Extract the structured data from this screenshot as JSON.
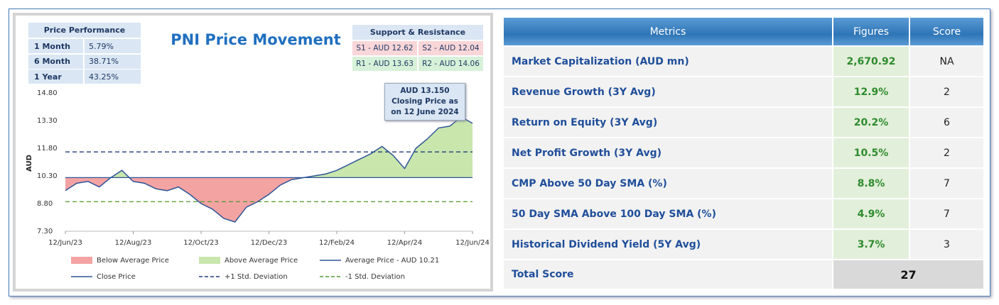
{
  "chart_data": {
    "type": "line",
    "title": "PNI Price Movement",
    "y_label": "AUD",
    "categories": [
      "12/Jun/23",
      null,
      null,
      null,
      null,
      null,
      "12/Aug/23",
      null,
      null,
      null,
      null,
      null,
      "12/Oct/23",
      null,
      null,
      null,
      null,
      null,
      "12/Dec/23",
      null,
      null,
      null,
      null,
      null,
      "12/Feb/24",
      null,
      null,
      null,
      null,
      null,
      "12/Apr/24",
      null,
      null,
      null,
      null,
      null,
      "12/Jun/24"
    ],
    "series": [
      {
        "name": "Close Price",
        "color": "#2f5597",
        "values": [
          9.5,
          9.9,
          10.0,
          9.7,
          10.2,
          10.6,
          10.0,
          9.9,
          9.6,
          9.5,
          9.7,
          9.3,
          8.8,
          8.5,
          8.0,
          7.8,
          8.6,
          8.9,
          9.3,
          9.8,
          10.1,
          10.2,
          10.3,
          10.4,
          10.6,
          10.9,
          11.2,
          11.5,
          11.9,
          11.4,
          10.7,
          11.8,
          12.3,
          12.9,
          13.0,
          13.5,
          13.15
        ]
      }
    ],
    "areas": [
      {
        "name": "Below Average Price",
        "color": "#f4a3a3"
      },
      {
        "name": "Above Average Price",
        "color": "#c9e6ad"
      }
    ],
    "reference_lines": [
      {
        "name": "Average Price - AUD 10.21",
        "value": 10.21,
        "color": "#2f5597",
        "dashed": false
      },
      {
        "name": "+1 Std. Deviation",
        "value": 11.6,
        "color": "#1f3d7a",
        "dashed": true
      },
      {
        "name": "-1 Std. Deviation",
        "value": 8.9,
        "color": "#4e9a2e",
        "dashed": true
      }
    ],
    "ylim": [
      7.3,
      14.8
    ],
    "yticks": [
      {
        "value": 7.3,
        "label": "7.30"
      },
      {
        "value": 8.8,
        "label": "8.80"
      },
      {
        "value": 10.3,
        "label": "10.30"
      },
      {
        "value": 11.8,
        "label": "11.80"
      },
      {
        "value": 13.3,
        "label": "13.30"
      },
      {
        "value": 14.8,
        "label": "14.80"
      }
    ],
    "annotation": "AUD 13.150 Closing Price as on 12 June 2024"
  },
  "price_performance": {
    "title": "Price Performance",
    "rows": [
      [
        "1 Month",
        "5.79%"
      ],
      [
        "6 Month",
        "38.71%"
      ],
      [
        "1 Year",
        "43.25%"
      ]
    ]
  },
  "support_resistance": {
    "title": "Support & Resistance",
    "rows": [
      [
        "S1 - AUD 12.62",
        "S2 - AUD 12.04"
      ],
      [
        "R1 - AUD 13.63",
        "R2 - AUD 14.06"
      ]
    ]
  },
  "metrics_table": {
    "columns": [
      "Metrics",
      "Figures",
      "Score"
    ],
    "rows": [
      [
        "Market Capitalization (AUD mn)",
        "2,670.92",
        "NA"
      ],
      [
        "Revenue Growth (3Y Avg)",
        "12.9%",
        "2"
      ],
      [
        "Return on Equity (3Y Avg)",
        "20.2%",
        "6"
      ],
      [
        "Net Profit Growth (3Y Avg)",
        "10.5%",
        "2"
      ],
      [
        "CMP Above 50 Day SMA (%)",
        "8.8%",
        "7"
      ],
      [
        "50 Day SMA Above 100 Day SMA (%)",
        "4.9%",
        "7"
      ],
      [
        "Historical Dividend Yield (5Y Avg)",
        "3.7%",
        "3"
      ]
    ],
    "total": [
      "Total Score",
      "27"
    ]
  }
}
